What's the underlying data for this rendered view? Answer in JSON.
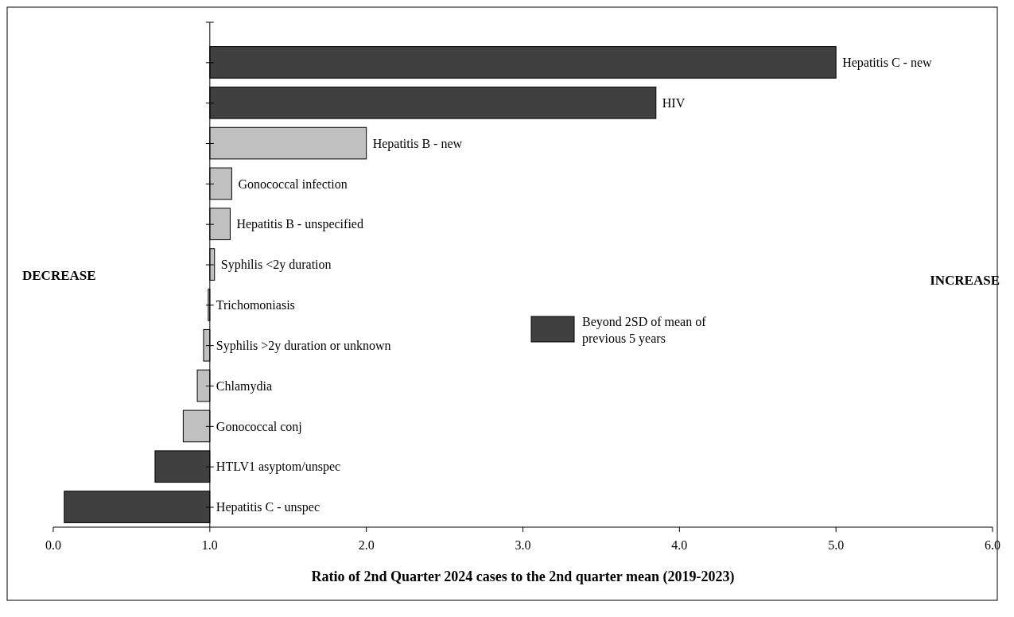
{
  "chart_data": {
    "type": "bar",
    "orientation": "horizontal",
    "categories": [
      "Hepatitis  C - new",
      "HIV",
      "Hepatitis  B - new",
      "Gonococcal  infection",
      "Hepatitis  B - unspecified",
      "Syphilis  <2y duration",
      "Trichomoniasis",
      "Syphilis  >2y duration  or unknown",
      "Chlamydia",
      "Gonococcal  conj",
      "HTLV1  asyptom/unspec",
      "Hepatitis  C - unspec"
    ],
    "series": [
      {
        "name": "Beyond 2SD of mean of previous  5 years",
        "color": "#404040",
        "base": [
          1,
          1,
          null,
          null,
          null,
          null,
          null,
          null,
          null,
          null,
          1,
          1
        ],
        "values": [
          4.0,
          2.85,
          null,
          null,
          null,
          null,
          null,
          null,
          null,
          null,
          -0.35,
          -0.93
        ]
      },
      {
        "color": "#c0c0c0",
        "base": [
          null,
          null,
          1,
          1,
          1,
          1,
          1,
          1,
          1,
          1,
          null,
          null
        ],
        "values": [
          null,
          null,
          1.0,
          0.14,
          0.13,
          0.03,
          -0.01,
          -0.04,
          -0.08,
          -0.17,
          null,
          null
        ]
      }
    ],
    "xlim": [
      0,
      6
    ],
    "xticks": [
      {
        "value": 0,
        "label": "0.0"
      },
      {
        "value": 1,
        "label": "1.0"
      },
      {
        "value": 2,
        "label": "2.0"
      },
      {
        "value": 3,
        "label": "3.0"
      },
      {
        "value": 4,
        "label": "4.0"
      },
      {
        "value": 5,
        "label": "5.0"
      },
      {
        "value": 6,
        "label": "6.0"
      }
    ],
    "xlabel": "Ratio of 2nd Quarter 2024 cases to the 2nd quarter mean (2019-2023)",
    "annotations": [
      "DECREASE",
      "INCREASE"
    ],
    "legend": "right",
    "grid": false
  }
}
